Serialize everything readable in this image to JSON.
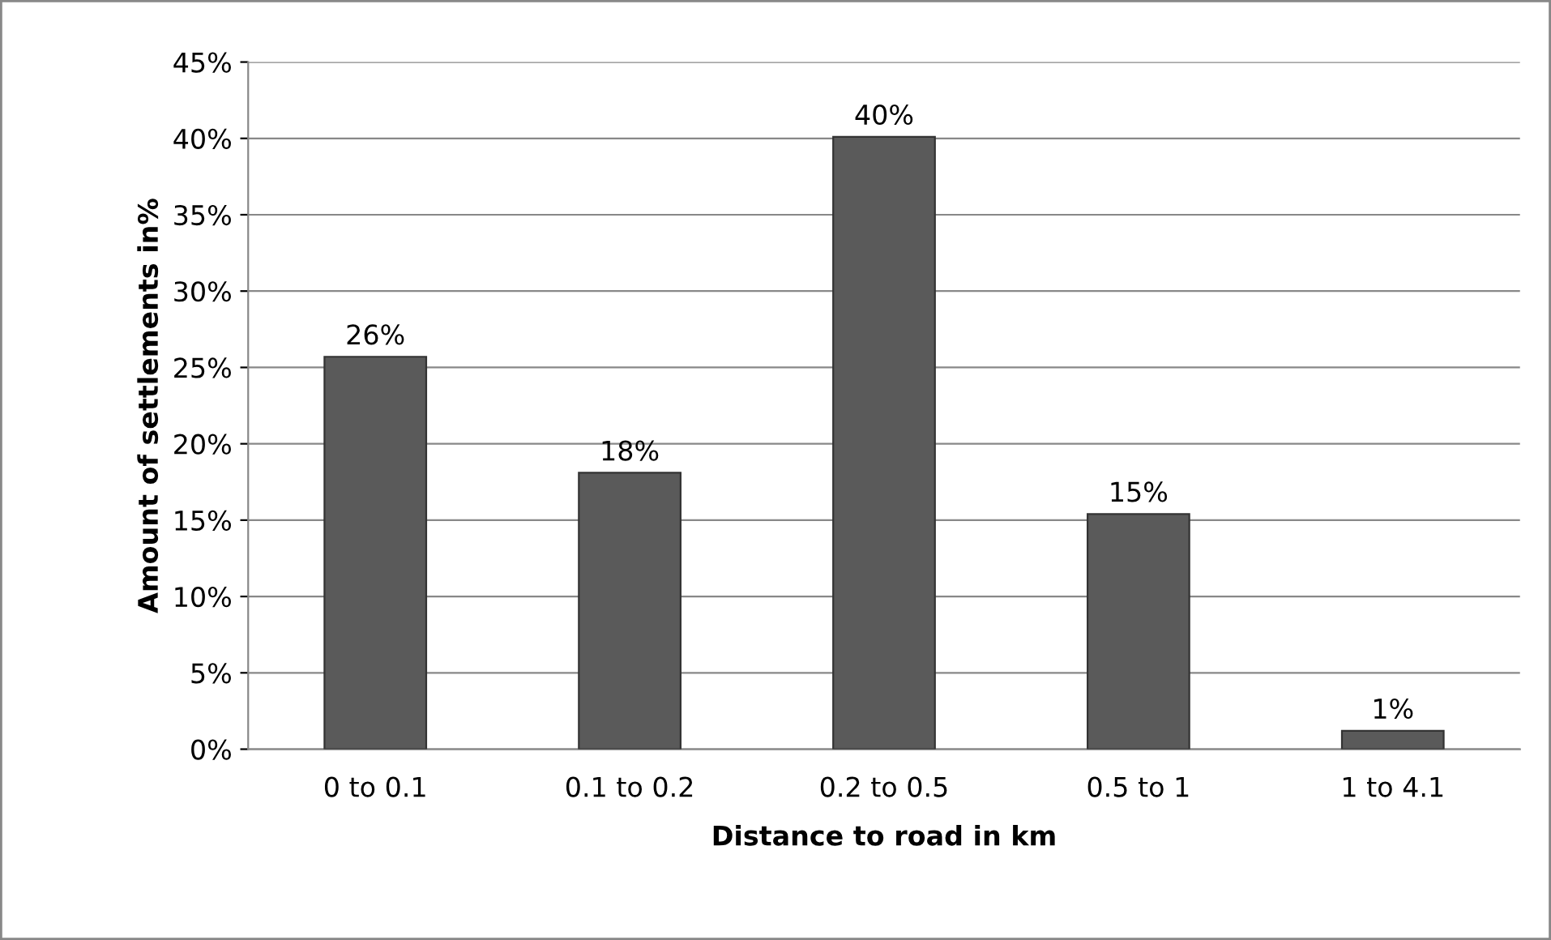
{
  "chart_data": {
    "type": "bar",
    "xlabel": "Distance to road in km",
    "ylabel": "Amount of settlements in%",
    "categories": [
      "0 to 0.1",
      "0.1 to 0.2",
      "0.2 to 0.5",
      "0.5 to 1",
      "1 to 4.1"
    ],
    "values": [
      25.7,
      18.1,
      40.1,
      15.4,
      1.2
    ],
    "value_labels": [
      "26%",
      "18%",
      "40%",
      "15%",
      "1%"
    ],
    "color": "#5a5a5a",
    "ylim": [
      0,
      45
    ],
    "yticks": [
      {
        "value": 0,
        "label": "0%"
      },
      {
        "value": 5,
        "label": "5%"
      },
      {
        "value": 10,
        "label": "10%"
      },
      {
        "value": 15,
        "label": "15%"
      },
      {
        "value": 20,
        "label": "20%"
      },
      {
        "value": 25,
        "label": "25%"
      },
      {
        "value": 30,
        "label": "30%"
      },
      {
        "value": 35,
        "label": "35%"
      },
      {
        "value": 40,
        "label": "40%"
      },
      {
        "value": 45,
        "label": "45%"
      }
    ],
    "grid": "y"
  }
}
